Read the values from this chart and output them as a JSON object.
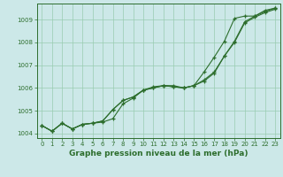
{
  "xlabel": "Graphe pression niveau de la mer (hPa)",
  "hours": [
    0,
    1,
    2,
    3,
    4,
    5,
    6,
    7,
    8,
    9,
    10,
    11,
    12,
    13,
    14,
    15,
    16,
    17,
    18,
    19,
    20,
    21,
    22,
    23
  ],
  "line1": [
    1004.35,
    1004.1,
    1004.45,
    1004.2,
    1004.4,
    1004.45,
    1004.5,
    1004.65,
    1005.3,
    1005.55,
    1005.9,
    1006.05,
    1006.1,
    1006.1,
    1006.0,
    1006.1,
    1006.3,
    1006.65,
    1007.4,
    1008.0,
    1008.85,
    1009.1,
    1009.3,
    1009.45
  ],
  "line2": [
    1004.35,
    1004.1,
    1004.45,
    1004.2,
    1004.4,
    1004.45,
    1004.55,
    1005.05,
    1005.45,
    1005.6,
    1005.9,
    1006.0,
    1006.1,
    1006.05,
    1006.0,
    1006.1,
    1006.35,
    1006.7,
    1007.4,
    1008.05,
    1008.9,
    1009.15,
    1009.35,
    1009.5
  ],
  "line3": [
    1004.35,
    1004.1,
    1004.45,
    1004.2,
    1004.4,
    1004.45,
    1004.55,
    1005.05,
    1005.45,
    1005.6,
    1005.9,
    1006.0,
    1006.1,
    1006.05,
    1006.0,
    1006.1,
    1006.7,
    1007.35,
    1008.05,
    1009.05,
    1009.15,
    1009.15,
    1009.4,
    1009.5
  ],
  "line_color": "#2d6e2d",
  "bg_color": "#cce8e8",
  "grid_color": "#99ccb0",
  "ylim": [
    1003.8,
    1009.7
  ],
  "yticks": [
    1004,
    1005,
    1006,
    1007,
    1008,
    1009
  ],
  "xticks": [
    0,
    1,
    2,
    3,
    4,
    5,
    6,
    7,
    8,
    9,
    10,
    11,
    12,
    13,
    14,
    15,
    16,
    17,
    18,
    19,
    20,
    21,
    22,
    23
  ],
  "tick_fontsize": 5.0,
  "label_fontsize": 6.5,
  "marker": "+"
}
